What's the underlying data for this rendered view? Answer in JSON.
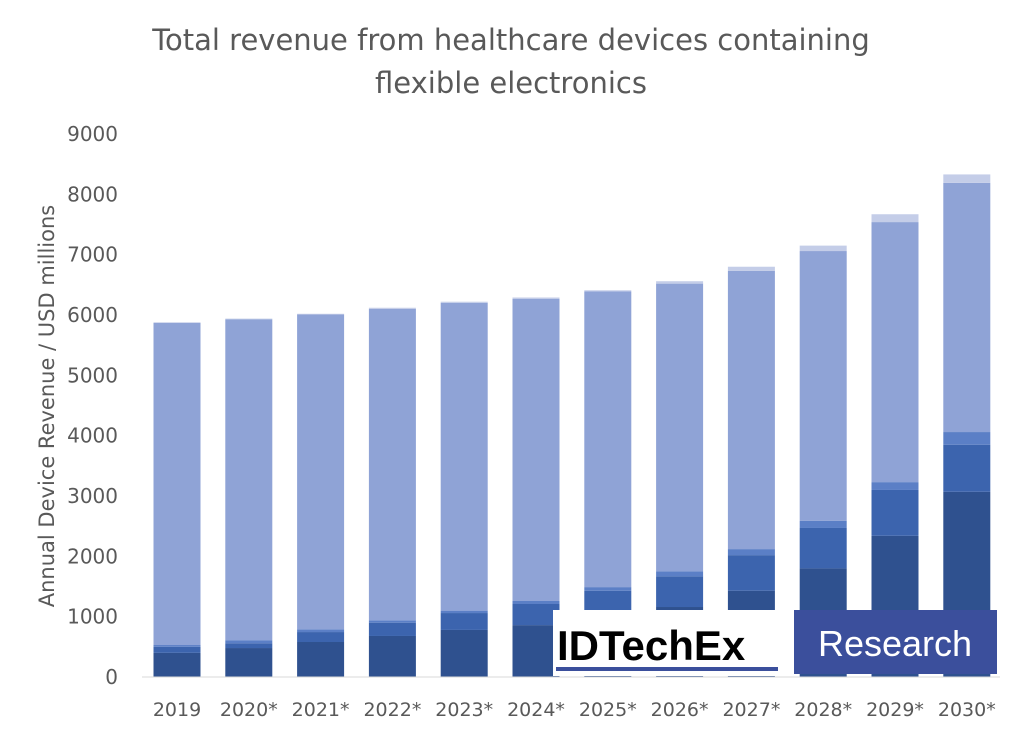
{
  "chart_data": {
    "type": "bar",
    "stacked": true,
    "title": [
      "Total revenue from healthcare devices containing",
      "flexible electronics"
    ],
    "xlabel": "",
    "ylabel": "Annual Device Revenue / USD millions",
    "ylim": [
      0,
      9000
    ],
    "yticks": [
      "0",
      "1000",
      "2000",
      "3000",
      "4000",
      "5000",
      "6000",
      "7000",
      "8000",
      "9000"
    ],
    "grid": false,
    "legend": "none",
    "categories": [
      "2019",
      "2020*",
      "2021*",
      "2022*",
      "2023*",
      "2024*",
      "2025*",
      "2026*",
      "2027*",
      "2028*",
      "2029*",
      "2030*"
    ],
    "series": [
      {
        "color": "#2f518f",
        "values": [
          400,
          480,
          580,
          680,
          780,
          860,
          950,
          1160,
          1430,
          1800,
          2340,
          3070
        ]
      },
      {
        "color": "#3c64ae",
        "values": [
          100,
          80,
          165,
          220,
          280,
          350,
          480,
          510,
          590,
          670,
          760,
          780
        ]
      },
      {
        "color": "#5b7fc6",
        "values": [
          30,
          50,
          45,
          40,
          40,
          50,
          60,
          80,
          100,
          120,
          130,
          210
        ]
      },
      {
        "color": "#8fa3d6",
        "values": [
          5340,
          5320,
          5220,
          5160,
          5100,
          5010,
          4900,
          4770,
          4610,
          4470,
          4310,
          4130
        ]
      },
      {
        "color": "#c4cde8",
        "values": [
          10,
          10,
          10,
          20,
          20,
          20,
          20,
          40,
          70,
          90,
          130,
          140
        ]
      }
    ]
  },
  "logo": {
    "left": "IDTechEx",
    "right": "Research",
    "brand_color": "#3b4f9c"
  }
}
